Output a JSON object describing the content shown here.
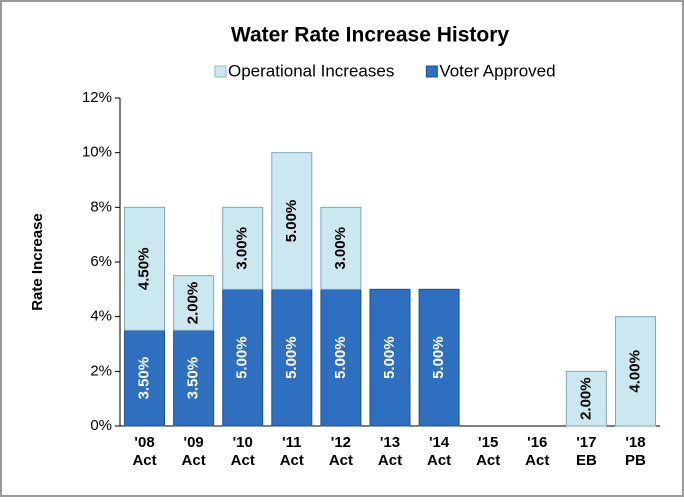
{
  "chart_data": {
    "type": "stacked_bar",
    "title": "Water Rate Increase History",
    "y_label": "Rate Increase",
    "categories": [
      [
        "'08",
        "Act"
      ],
      [
        "'09",
        "Act"
      ],
      [
        "'10",
        "Act"
      ],
      [
        "'11",
        "Act"
      ],
      [
        "'12",
        "Act"
      ],
      [
        "'13",
        "Act"
      ],
      [
        "'14",
        "Act"
      ],
      [
        "'15",
        "Act"
      ],
      [
        "'16",
        "Act"
      ],
      [
        "'17",
        "EB"
      ],
      [
        "'18",
        "PB"
      ]
    ],
    "series": [
      {
        "name": "Voter Approved",
        "color": "#2f6fc0",
        "values": [
          3.5,
          3.5,
          5,
          5,
          5,
          5,
          5,
          null,
          null,
          null,
          null
        ],
        "value_labels": [
          "3.50%",
          "3.50%",
          "5.00%",
          "5.00%",
          "5.00%",
          "5.00%",
          "5.00%",
          null,
          null,
          null,
          null
        ]
      },
      {
        "name": "Operational Increases",
        "color": "#cbe8f0",
        "values": [
          4.5,
          2,
          3,
          5,
          3,
          null,
          null,
          null,
          null,
          2,
          4
        ],
        "value_labels": [
          "4.50%",
          "2.00%",
          "3.00%",
          "5.00%",
          "3.00%",
          null,
          null,
          null,
          null,
          "2.00%",
          "4.00%"
        ]
      }
    ],
    "legend_order": [
      1,
      0
    ],
    "ylim": [
      0,
      12
    ],
    "yticks": [
      {
        "value": 0,
        "label": "0%"
      },
      {
        "value": 2,
        "label": "2%"
      },
      {
        "value": 4,
        "label": "4%"
      },
      {
        "value": 6,
        "label": "6%"
      },
      {
        "value": 8,
        "label": "8%"
      },
      {
        "value": 10,
        "label": "10%"
      },
      {
        "value": 12,
        "label": "12%"
      }
    ]
  }
}
